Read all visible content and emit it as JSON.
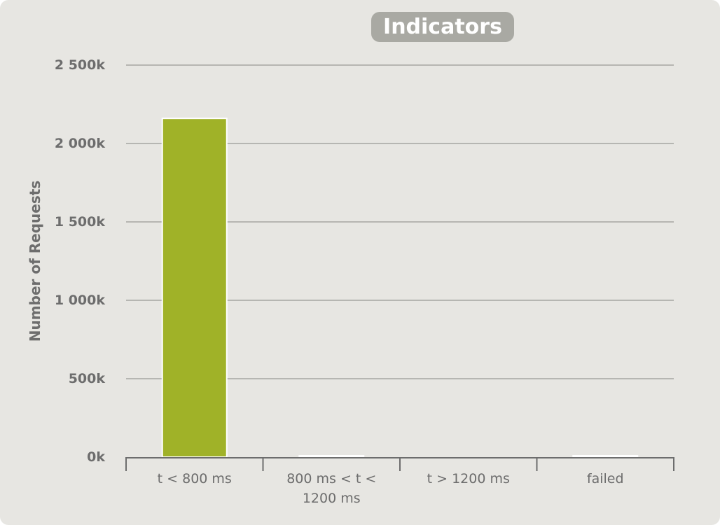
{
  "chart_data": {
    "type": "bar",
    "title": "Indicators",
    "ylabel": "Number of Requests",
    "xlabel": "",
    "categories": [
      "t < 800 ms",
      "800 ms < t < 1200 ms",
      "t > 1200 ms",
      "failed"
    ],
    "category_label_lines": [
      [
        "t < 800 ms"
      ],
      [
        "800 ms < t <",
        "1200 ms"
      ],
      [
        "t > 1200 ms"
      ],
      [
        "failed"
      ]
    ],
    "values": [
      2160000,
      4000,
      0,
      4000
    ],
    "colors": [
      "#a0b228",
      "#ffffff",
      "#ffffff",
      "#ffffff"
    ],
    "ylim": [
      0,
      2500000
    ],
    "yticks": [
      0,
      500000,
      1000000,
      1500000,
      2000000,
      2500000
    ],
    "ytick_labels": [
      "0k",
      "500k",
      "1 000k",
      "1 500k",
      "2 000k",
      "2 500k"
    ],
    "grid": true,
    "legend": "none",
    "gridline_color": "#a6a6a2",
    "background_color": "#e7e6e2"
  }
}
